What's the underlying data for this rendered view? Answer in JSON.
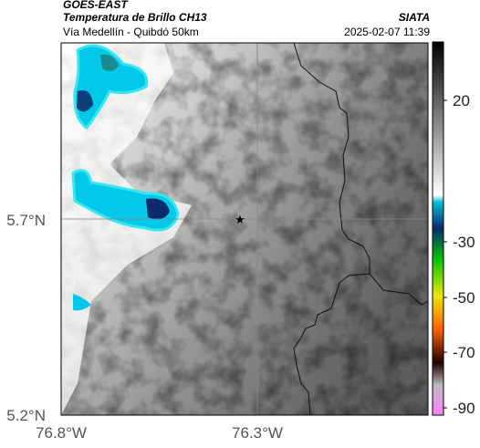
{
  "header": {
    "satellite": "GOES-EAST",
    "product": "Temperatura de Brillo CH13",
    "route": "Vía Medellín - Quibdó 50km",
    "org": "SIATA",
    "datetime": "2025-02-07 11:39"
  },
  "map": {
    "x_ticks": [
      "76.8°W",
      "76.3°W"
    ],
    "y_ticks": [
      "5.7°N",
      "5.2°N"
    ],
    "marker_icon": "star-icon"
  },
  "colorbar": {
    "ticks": [
      "20",
      "-30",
      "-50",
      "-70",
      "-90"
    ],
    "colors": [
      "#000000",
      "#ffffff",
      "#00bcd4",
      "#0a2a6e",
      "#00c000",
      "#e8e800",
      "#ff6000",
      "#200000",
      "#ff80ff"
    ]
  }
}
